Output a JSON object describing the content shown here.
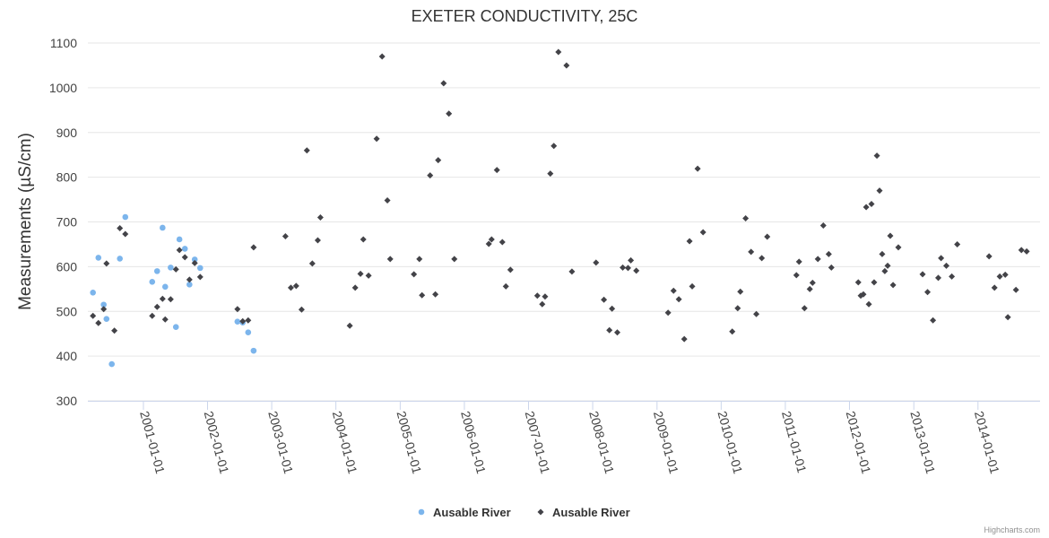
{
  "chart_data": {
    "type": "scatter",
    "title": "EXETER CONDUCTIVITY, 25C",
    "xlabel": "",
    "ylabel": "Measurements (µS/cm)",
    "ylim": [
      300,
      1100
    ],
    "yticks": [
      300,
      400,
      500,
      600,
      700,
      800,
      900,
      1000,
      1100
    ],
    "xlim": [
      "2000-02-20",
      "2014-12-20"
    ],
    "xticks": [
      "2001-01-01",
      "2002-01-01",
      "2003-01-01",
      "2004-01-01",
      "2005-01-01",
      "2006-01-01",
      "2007-01-01",
      "2008-01-01",
      "2009-01-01",
      "2010-01-01",
      "2011-01-01",
      "2012-01-01",
      "2013-01-01",
      "2014-01-01"
    ],
    "grid": "horizontal",
    "legend_position": "bottom-center",
    "credit": "Highcharts.com",
    "series": [
      {
        "name": "Ausable River",
        "color": "#7cb5ec",
        "marker": "circle",
        "points": [
          [
            "2000-03-20",
            542
          ],
          [
            "2000-04-20",
            620
          ],
          [
            "2000-05-20",
            515
          ],
          [
            "2000-06-05",
            483
          ],
          [
            "2000-07-05",
            382
          ],
          [
            "2000-08-20",
            618
          ],
          [
            "2000-09-20",
            711
          ],
          [
            "2001-02-20",
            566
          ],
          [
            "2001-03-20",
            590
          ],
          [
            "2001-04-20",
            687
          ],
          [
            "2001-05-05",
            555
          ],
          [
            "2001-06-05",
            598
          ],
          [
            "2001-07-05",
            465
          ],
          [
            "2001-07-25",
            661
          ],
          [
            "2001-08-25",
            640
          ],
          [
            "2001-09-20",
            560
          ],
          [
            "2001-10-20",
            616
          ],
          [
            "2001-11-20",
            597
          ],
          [
            "2002-06-20",
            477
          ],
          [
            "2002-07-20",
            475
          ],
          [
            "2002-08-20",
            453
          ],
          [
            "2002-09-20",
            412
          ]
        ]
      },
      {
        "name": "Ausable River",
        "color": "#434348",
        "marker": "diamond",
        "points": [
          [
            "2000-03-20",
            490
          ],
          [
            "2000-04-20",
            474
          ],
          [
            "2000-05-20",
            505
          ],
          [
            "2000-06-05",
            607
          ],
          [
            "2000-07-20",
            457
          ],
          [
            "2000-08-20",
            686
          ],
          [
            "2000-09-20",
            673
          ],
          [
            "2001-02-20",
            490
          ],
          [
            "2001-03-20",
            510
          ],
          [
            "2001-04-20",
            528
          ],
          [
            "2001-05-05",
            482
          ],
          [
            "2001-06-05",
            527
          ],
          [
            "2001-07-05",
            594
          ],
          [
            "2001-07-25",
            637
          ],
          [
            "2001-08-25",
            621
          ],
          [
            "2001-09-20",
            571
          ],
          [
            "2001-10-20",
            608
          ],
          [
            "2001-11-20",
            577
          ],
          [
            "2002-06-20",
            505
          ],
          [
            "2002-07-20",
            478
          ],
          [
            "2002-08-20",
            480
          ],
          [
            "2002-09-20",
            643
          ],
          [
            "2003-03-20",
            668
          ],
          [
            "2003-04-20",
            553
          ],
          [
            "2003-05-20",
            557
          ],
          [
            "2003-06-20",
            504
          ],
          [
            "2003-07-20",
            860
          ],
          [
            "2003-08-20",
            607
          ],
          [
            "2003-09-20",
            659
          ],
          [
            "2003-10-05",
            710
          ],
          [
            "2004-03-20",
            468
          ],
          [
            "2004-04-20",
            553
          ],
          [
            "2004-05-20",
            584
          ],
          [
            "2004-06-05",
            661
          ],
          [
            "2004-07-05",
            580
          ],
          [
            "2004-08-20",
            886
          ],
          [
            "2004-09-20",
            1070
          ],
          [
            "2004-10-20",
            748
          ],
          [
            "2004-11-05",
            617
          ],
          [
            "2005-03-20",
            583
          ],
          [
            "2005-04-20",
            617
          ],
          [
            "2005-05-05",
            536
          ],
          [
            "2005-06-20",
            804
          ],
          [
            "2005-07-20",
            538
          ],
          [
            "2005-08-05",
            838
          ],
          [
            "2005-09-05",
            1010
          ],
          [
            "2005-10-05",
            942
          ],
          [
            "2005-11-05",
            617
          ],
          [
            "2006-05-20",
            651
          ],
          [
            "2006-06-05",
            661
          ],
          [
            "2006-07-05",
            816
          ],
          [
            "2006-08-05",
            655
          ],
          [
            "2006-08-25",
            556
          ],
          [
            "2006-09-20",
            593
          ],
          [
            "2007-02-20",
            535
          ],
          [
            "2007-03-20",
            516
          ],
          [
            "2007-04-05",
            533
          ],
          [
            "2007-05-05",
            808
          ],
          [
            "2007-05-25",
            870
          ],
          [
            "2007-06-20",
            1080
          ],
          [
            "2007-08-05",
            1050
          ],
          [
            "2007-09-05",
            589
          ],
          [
            "2008-01-20",
            609
          ],
          [
            "2008-03-05",
            526
          ],
          [
            "2008-04-05",
            458
          ],
          [
            "2008-04-20",
            506
          ],
          [
            "2008-05-20",
            453
          ],
          [
            "2008-06-20",
            598
          ],
          [
            "2008-07-20",
            597
          ],
          [
            "2008-08-05",
            614
          ],
          [
            "2008-09-05",
            591
          ],
          [
            "2009-03-05",
            497
          ],
          [
            "2009-04-05",
            546
          ],
          [
            "2009-05-05",
            527
          ],
          [
            "2009-06-05",
            438
          ],
          [
            "2009-07-05",
            657
          ],
          [
            "2009-07-20",
            556
          ],
          [
            "2009-08-20",
            819
          ],
          [
            "2009-09-20",
            677
          ],
          [
            "2010-03-05",
            455
          ],
          [
            "2010-04-05",
            507
          ],
          [
            "2010-04-20",
            544
          ],
          [
            "2010-05-20",
            708
          ],
          [
            "2010-06-20",
            633
          ],
          [
            "2010-07-20",
            494
          ],
          [
            "2010-08-20",
            619
          ],
          [
            "2010-09-20",
            667
          ],
          [
            "2011-03-05",
            581
          ],
          [
            "2011-03-20",
            611
          ],
          [
            "2011-04-20",
            507
          ],
          [
            "2011-05-20",
            550
          ],
          [
            "2011-06-05",
            564
          ],
          [
            "2011-07-05",
            617
          ],
          [
            "2011-08-05",
            692
          ],
          [
            "2011-09-05",
            628
          ],
          [
            "2011-09-20",
            598
          ],
          [
            "2012-02-20",
            565
          ],
          [
            "2012-03-05",
            535
          ],
          [
            "2012-03-20",
            538
          ],
          [
            "2012-04-05",
            733
          ],
          [
            "2012-04-20",
            516
          ],
          [
            "2012-05-05",
            740
          ],
          [
            "2012-05-20",
            565
          ],
          [
            "2012-06-05",
            848
          ],
          [
            "2012-06-20",
            770
          ],
          [
            "2012-07-05",
            628
          ],
          [
            "2012-07-20",
            590
          ],
          [
            "2012-08-05",
            602
          ],
          [
            "2012-08-20",
            669
          ],
          [
            "2012-09-05",
            559
          ],
          [
            "2012-10-05",
            643
          ],
          [
            "2013-02-20",
            583
          ],
          [
            "2013-03-20",
            543
          ],
          [
            "2013-04-20",
            480
          ],
          [
            "2013-05-20",
            575
          ],
          [
            "2013-06-05",
            619
          ],
          [
            "2013-07-05",
            602
          ],
          [
            "2013-08-05",
            578
          ],
          [
            "2013-09-05",
            650
          ],
          [
            "2014-03-05",
            623
          ],
          [
            "2014-04-05",
            553
          ],
          [
            "2014-05-05",
            578
          ],
          [
            "2014-06-05",
            582
          ],
          [
            "2014-06-20",
            487
          ],
          [
            "2014-08-05",
            548
          ],
          [
            "2014-09-05",
            637
          ],
          [
            "2014-10-05",
            634
          ]
        ]
      }
    ]
  }
}
